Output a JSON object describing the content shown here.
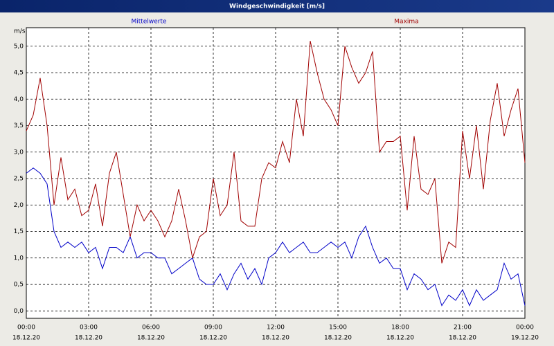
{
  "chart_data": {
    "type": "line",
    "title": "Windgeschwindigkeit [m/s]",
    "y_label": "m/s",
    "x": [
      0,
      20,
      40,
      60,
      80,
      100,
      120,
      140,
      160,
      180,
      200,
      220,
      240,
      260,
      280,
      300,
      320,
      340,
      360,
      380,
      400,
      420,
      440,
      460,
      480,
      500,
      520,
      540,
      560,
      580,
      600,
      620,
      640,
      660,
      680,
      700,
      720,
      740,
      760,
      780,
      800,
      820,
      840,
      860,
      880,
      900,
      920,
      940,
      960,
      980,
      1000,
      1020,
      1040,
      1060,
      1080,
      1100,
      1120,
      1140,
      1160,
      1180,
      1200,
      1220,
      1240,
      1260,
      1280,
      1300,
      1320,
      1340,
      1360,
      1380,
      1400,
      1420,
      1440
    ],
    "series": [
      {
        "name": "Mittelwerte",
        "color": "#0000c8",
        "values": [
          2.6,
          2.7,
          2.6,
          2.4,
          1.5,
          1.2,
          1.3,
          1.2,
          1.3,
          1.1,
          1.2,
          0.8,
          1.2,
          1.2,
          1.1,
          1.4,
          1.0,
          1.1,
          1.1,
          1.0,
          1.0,
          0.7,
          0.8,
          0.9,
          1.0,
          0.6,
          0.5,
          0.5,
          0.7,
          0.4,
          0.7,
          0.9,
          0.6,
          0.8,
          0.5,
          1.0,
          1.1,
          1.3,
          1.1,
          1.2,
          1.3,
          1.1,
          1.1,
          1.2,
          1.3,
          1.2,
          1.3,
          1.0,
          1.4,
          1.6,
          1.2,
          0.9,
          1.0,
          0.8,
          0.8,
          0.4,
          0.7,
          0.6,
          0.4,
          0.5,
          0.1,
          0.3,
          0.2,
          0.4,
          0.1,
          0.4,
          0.2,
          0.3,
          0.4,
          0.9,
          0.6,
          0.7,
          0.1
        ]
      },
      {
        "name": "Maxima",
        "color": "#a00000",
        "values": [
          3.4,
          3.7,
          4.4,
          3.5,
          2.0,
          2.9,
          2.1,
          2.3,
          1.8,
          1.9,
          2.4,
          1.6,
          2.6,
          3.0,
          2.2,
          1.4,
          2.0,
          1.7,
          1.9,
          1.7,
          1.4,
          1.7,
          2.3,
          1.7,
          1.0,
          1.4,
          1.5,
          2.5,
          1.8,
          2.0,
          3.0,
          1.7,
          1.6,
          1.6,
          2.5,
          2.8,
          2.7,
          3.2,
          2.8,
          4.0,
          3.3,
          5.1,
          4.5,
          4.0,
          3.8,
          3.5,
          5.0,
          4.6,
          4.3,
          4.5,
          4.9,
          3.0,
          3.2,
          3.2,
          3.3,
          1.9,
          3.3,
          2.3,
          2.2,
          2.5,
          0.9,
          1.3,
          1.2,
          3.4,
          2.5,
          3.5,
          2.3,
          3.6,
          4.3,
          3.3,
          3.8,
          4.2,
          2.8
        ]
      }
    ],
    "xlim": [
      0,
      1440
    ],
    "xticks": [
      {
        "value": 0,
        "label": "00:00",
        "date": "18.12.20"
      },
      {
        "value": 180,
        "label": "03:00",
        "date": "18.12.20"
      },
      {
        "value": 360,
        "label": "06:00",
        "date": "18.12.20"
      },
      {
        "value": 540,
        "label": "09:00",
        "date": "18.12.20"
      },
      {
        "value": 720,
        "label": "12:00",
        "date": "18.12.20"
      },
      {
        "value": 900,
        "label": "15:00",
        "date": "18.12.20"
      },
      {
        "value": 1080,
        "label": "18:00",
        "date": "18.12.20"
      },
      {
        "value": 1260,
        "label": "21:00",
        "date": "18.12.20"
      },
      {
        "value": 1440,
        "label": "00:00",
        "date": "19.12.20"
      }
    ],
    "ylim": [
      -0.14,
      5.35
    ],
    "yticks": [
      {
        "value": 0,
        "label": "0,0"
      },
      {
        "value": 0.5,
        "label": "0,5"
      },
      {
        "value": 1,
        "label": "1,0"
      },
      {
        "value": 1.5,
        "label": "1,5"
      },
      {
        "value": 2,
        "label": "2,0"
      },
      {
        "value": 2.5,
        "label": "2,5"
      },
      {
        "value": 3,
        "label": "3,0"
      },
      {
        "value": 3.5,
        "label": "3,5"
      },
      {
        "value": 4,
        "label": "4,0"
      },
      {
        "value": 4.5,
        "label": "4,5"
      },
      {
        "value": 5,
        "label": "5,0"
      }
    ],
    "grid": true
  }
}
